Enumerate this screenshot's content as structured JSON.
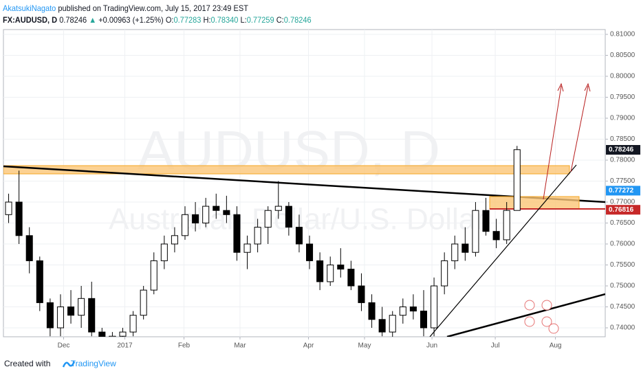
{
  "header": {
    "author": "AkatsukiNagato",
    "published": "published on TradingView.com, July 15, 2017 23:49 EST",
    "symbol": "FX:AUDUSD, D",
    "last": "0.78246",
    "arrow": "▲",
    "change": "+0.00963 (+1.25%)",
    "o_label": "O:",
    "o": "0.77283",
    "h_label": "H:",
    "h": "0.78340",
    "l_label": "L:",
    "l": "0.77259",
    "c_label": "C:",
    "c": "0.78246"
  },
  "chart_data": {
    "type": "candlestick",
    "watermark": "AUDUSD, D",
    "watermark_sub": "Australian Dollar/U.S. Dollar",
    "up_color": "#ffffff",
    "down_color": "#000000",
    "xlim": [
      0,
      58
    ],
    "xticks": [
      {
        "value": 5.8,
        "label": "Dec"
      },
      {
        "value": 11.7,
        "label": "2017"
      },
      {
        "value": 17.4,
        "label": "Feb"
      },
      {
        "value": 22.8,
        "label": "Mar"
      },
      {
        "value": 29.4,
        "label": "Apr"
      },
      {
        "value": 34.8,
        "label": "May"
      },
      {
        "value": 41.3,
        "label": "Jun"
      },
      {
        "value": 47.4,
        "label": "Jul"
      },
      {
        "value": 53.2,
        "label": "Aug"
      }
    ],
    "ylim": [
      0.73787,
      0.81115
    ],
    "yticks": [
      {
        "value": 0.74,
        "label": "0.74000"
      },
      {
        "value": 0.745,
        "label": "0.74500"
      },
      {
        "value": 0.75,
        "label": "0.75000"
      },
      {
        "value": 0.755,
        "label": "0.75500"
      },
      {
        "value": 0.76,
        "label": "0.76000"
      },
      {
        "value": 0.765,
        "label": "0.76500"
      },
      {
        "value": 0.77,
        "label": "0.77000"
      },
      {
        "value": 0.775,
        "label": "0.77500"
      },
      {
        "value": 0.78,
        "label": "0.78000"
      },
      {
        "value": 0.785,
        "label": "0.78500"
      },
      {
        "value": 0.79,
        "label": "0.79000"
      },
      {
        "value": 0.795,
        "label": "0.79500"
      },
      {
        "value": 0.8,
        "label": "0.80000"
      },
      {
        "value": 0.805,
        "label": "0.80500"
      },
      {
        "value": 0.81,
        "label": "0.81000"
      }
    ],
    "grid": true,
    "ohlc": [
      [
        0.767,
        0.772,
        0.765,
        0.77
      ],
      [
        0.77,
        0.7775,
        0.76,
        0.762
      ],
      [
        0.762,
        0.764,
        0.753,
        0.756
      ],
      [
        0.756,
        0.757,
        0.744,
        0.746
      ],
      [
        0.746,
        0.747,
        0.738,
        0.74
      ],
      [
        0.74,
        0.748,
        0.738,
        0.745
      ],
      [
        0.745,
        0.749,
        0.741,
        0.743
      ],
      [
        0.743,
        0.75,
        0.74,
        0.747
      ],
      [
        0.747,
        0.751,
        0.738,
        0.739
      ],
      [
        0.739,
        0.74,
        0.736,
        0.737
      ],
      [
        0.7375,
        0.739,
        0.736,
        0.738
      ],
      [
        0.738,
        0.74,
        0.737,
        0.739
      ],
      [
        0.739,
        0.744,
        0.738,
        0.743
      ],
      [
        0.743,
        0.75,
        0.742,
        0.749
      ],
      [
        0.749,
        0.758,
        0.748,
        0.756
      ],
      [
        0.756,
        0.762,
        0.754,
        0.76
      ],
      [
        0.76,
        0.764,
        0.758,
        0.762
      ],
      [
        0.762,
        0.769,
        0.761,
        0.767
      ],
      [
        0.767,
        0.77,
        0.763,
        0.765
      ],
      [
        0.765,
        0.771,
        0.764,
        0.769
      ],
      [
        0.769,
        0.772,
        0.766,
        0.768
      ],
      [
        0.768,
        0.7715,
        0.765,
        0.767
      ],
      [
        0.767,
        0.769,
        0.756,
        0.758
      ],
      [
        0.758,
        0.762,
        0.754,
        0.76
      ],
      [
        0.76,
        0.766,
        0.758,
        0.764
      ],
      [
        0.764,
        0.769,
        0.76,
        0.768
      ],
      [
        0.768,
        0.775,
        0.766,
        0.769
      ],
      [
        0.769,
        0.77,
        0.762,
        0.764
      ],
      [
        0.764,
        0.767,
        0.758,
        0.76
      ],
      [
        0.76,
        0.762,
        0.754,
        0.756
      ],
      [
        0.756,
        0.758,
        0.749,
        0.751
      ],
      [
        0.751,
        0.757,
        0.75,
        0.755
      ],
      [
        0.755,
        0.759,
        0.752,
        0.754
      ],
      [
        0.754,
        0.756,
        0.749,
        0.75
      ],
      [
        0.75,
        0.753,
        0.744,
        0.746
      ],
      [
        0.746,
        0.748,
        0.74,
        0.742
      ],
      [
        0.742,
        0.745,
        0.738,
        0.739
      ],
      [
        0.739,
        0.744,
        0.737,
        0.743
      ],
      [
        0.743,
        0.747,
        0.741,
        0.745
      ],
      [
        0.745,
        0.748,
        0.742,
        0.744
      ],
      [
        0.744,
        0.749,
        0.738,
        0.74
      ],
      [
        0.74,
        0.752,
        0.738,
        0.75
      ],
      [
        0.75,
        0.758,
        0.748,
        0.756
      ],
      [
        0.756,
        0.762,
        0.754,
        0.76
      ],
      [
        0.76,
        0.764,
        0.756,
        0.758
      ],
      [
        0.758,
        0.77,
        0.757,
        0.768
      ],
      [
        0.768,
        0.771,
        0.762,
        0.763
      ],
      [
        0.763,
        0.766,
        0.759,
        0.761
      ],
      [
        0.761,
        0.77,
        0.76,
        0.768
      ],
      [
        0.768,
        0.7834,
        0.768,
        0.7825
      ]
    ],
    "price_labels": [
      {
        "value": 0.78246,
        "color": "#131722"
      },
      {
        "value": 0.77272,
        "color": "#2196f3"
      },
      {
        "value": 0.76816,
        "color": "#c62828"
      }
    ]
  },
  "footer": {
    "created": "Created with",
    "brand": "TradingView"
  }
}
